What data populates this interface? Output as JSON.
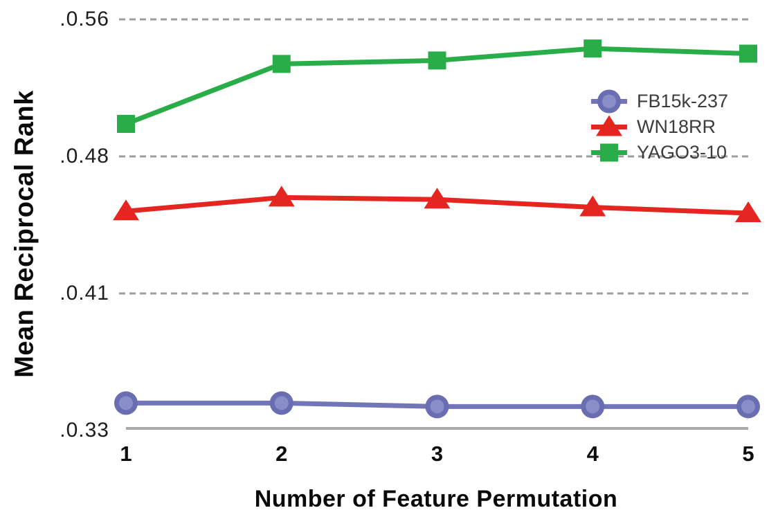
{
  "chart_data": {
    "type": "line",
    "title": "",
    "xlabel": "Number of Feature Permutation",
    "ylabel": "Mean Reciprocal Rank",
    "x": [
      1,
      2,
      3,
      4,
      5
    ],
    "x_tick_labels": [
      "1",
      "2",
      "3",
      "4",
      "5"
    ],
    "y_ticks": {
      "labels": [
        ".0.56",
        ".0.48",
        ".0.41",
        ".0.33"
      ],
      "values": [
        0.56,
        0.48,
        0.41,
        0.33
      ]
    },
    "ylim": [
      0.33,
      0.56
    ],
    "grid": "horizontal-dashed",
    "legend_position": "upper-right-inside-no-frame",
    "series": [
      {
        "name": "FB15k-237",
        "marker": "circle",
        "line_color": "#7276b8",
        "marker_ring_color": "#696db2",
        "marker_fill_color": "#8a8ec8",
        "values": [
          0.346,
          0.346,
          0.344,
          0.344,
          0.344
        ]
      },
      {
        "name": "WN18RR",
        "marker": "triangle",
        "line_color": "#e52620",
        "marker_fill_color": "#e52620",
        "values": [
          0.452,
          0.459,
          0.458,
          0.454,
          0.451
        ]
      },
      {
        "name": "YAGO3-10",
        "marker": "square",
        "line_color": "#29ad48",
        "marker_fill_color": "#29ad48",
        "values": [
          0.499,
          0.534,
          0.536,
          0.543,
          0.54
        ]
      }
    ],
    "gridline_color": "#9e9e9e",
    "axis_line_color": "#a9a9a9",
    "tick_text_color": "#1d1d1d",
    "legend_text_color": "#3c3c3c"
  }
}
